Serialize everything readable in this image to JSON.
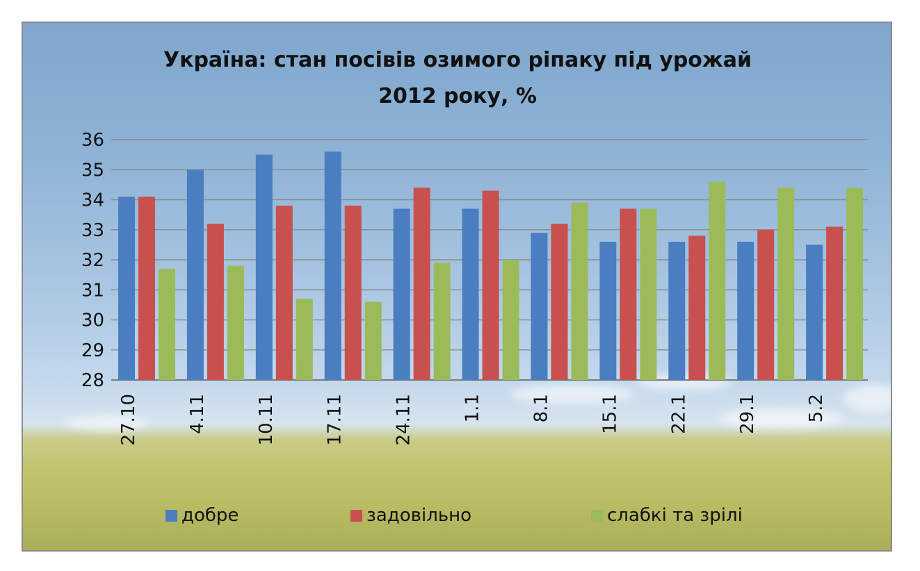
{
  "chart_data": {
    "type": "bar",
    "title_lines": [
      "Україна: стан посівів озимого ріпаку під урожай",
      "2012 року, %"
    ],
    "categories": [
      "27.10",
      "4.11",
      "10.11",
      "17.11",
      "24.11",
      "1.1",
      "8.1",
      "15.1",
      "22.1",
      "29.1",
      "5.2"
    ],
    "series": [
      {
        "name": "добре",
        "color": "#4a7ec0",
        "values": [
          34.1,
          35.0,
          35.5,
          35.6,
          33.7,
          33.7,
          32.9,
          32.6,
          32.6,
          32.6,
          32.5
        ]
      },
      {
        "name": "задовільно",
        "color": "#c8504e",
        "values": [
          34.1,
          33.2,
          33.8,
          33.8,
          34.4,
          34.3,
          33.2,
          33.7,
          32.8,
          33.0,
          33.1
        ]
      },
      {
        "name": "слабкі та зрілі",
        "color": "#9bbb59",
        "values": [
          31.7,
          31.8,
          30.7,
          30.6,
          31.9,
          32.0,
          33.9,
          33.7,
          34.6,
          34.4,
          34.4
        ]
      }
    ],
    "y_ticks": [
      "28",
      "29",
      "30",
      "31",
      "32",
      "33",
      "34",
      "35",
      "36"
    ],
    "ylim": [
      28,
      36
    ],
    "xlabel": "",
    "ylabel": "",
    "grid": true,
    "legend_position": "bottom"
  }
}
